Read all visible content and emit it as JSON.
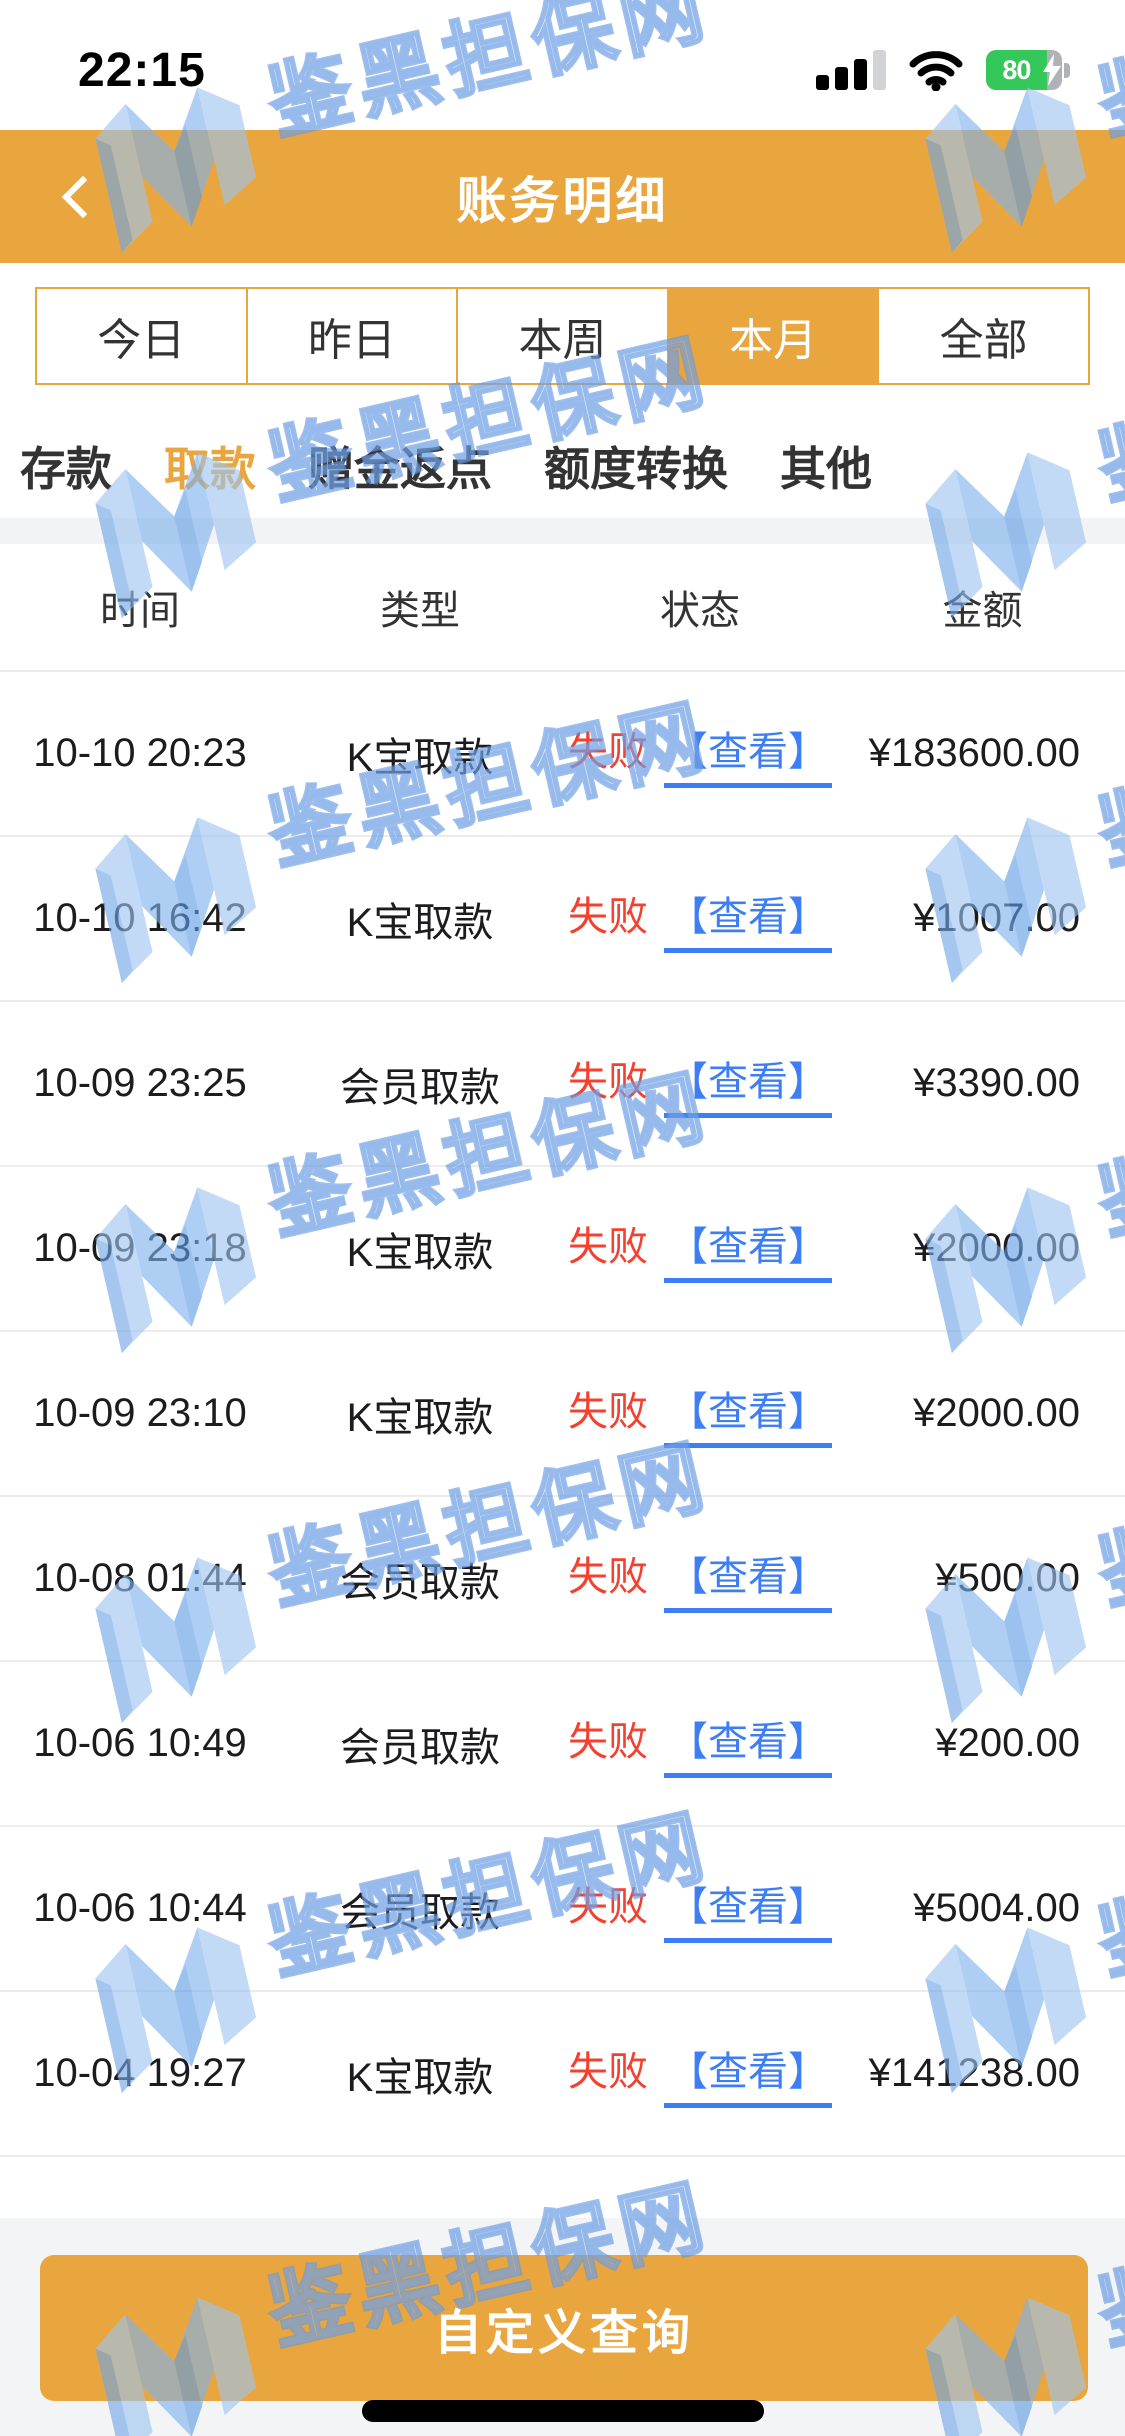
{
  "status_bar": {
    "time": "22:15",
    "battery_percent": "80"
  },
  "header": {
    "title": "账务明细"
  },
  "date_tabs": {
    "selected_index": 3,
    "items": [
      {
        "label": "今日"
      },
      {
        "label": "昨日"
      },
      {
        "label": "本周"
      },
      {
        "label": "本月"
      },
      {
        "label": "全部"
      }
    ]
  },
  "category_tabs": {
    "selected_index": 1,
    "items": [
      {
        "label": "存款"
      },
      {
        "label": "取款"
      },
      {
        "label": "赠金返点"
      },
      {
        "label": "额度转换"
      },
      {
        "label": "其他"
      }
    ]
  },
  "table": {
    "columns": [
      "时间",
      "类型",
      "状态",
      "金额"
    ],
    "rows": [
      {
        "time": "10-10 20:23",
        "type": "K宝取款",
        "status": "失败",
        "action": "【查看】",
        "amount": "¥183600.00"
      },
      {
        "time": "10-10 16:42",
        "type": "K宝取款",
        "status": "失败",
        "action": "【查看】",
        "amount": "¥1007.00"
      },
      {
        "time": "10-09 23:25",
        "type": "会员取款",
        "status": "失败",
        "action": "【查看】",
        "amount": "¥3390.00"
      },
      {
        "time": "10-09 23:18",
        "type": "K宝取款",
        "status": "失败",
        "action": "【查看】",
        "amount": "¥2000.00"
      },
      {
        "time": "10-09 23:10",
        "type": "K宝取款",
        "status": "失败",
        "action": "【查看】",
        "amount": "¥2000.00"
      },
      {
        "time": "10-08 01:44",
        "type": "会员取款",
        "status": "失败",
        "action": "【查看】",
        "amount": "¥500.00"
      },
      {
        "time": "10-06 10:49",
        "type": "会员取款",
        "status": "失败",
        "action": "【查看】",
        "amount": "¥200.00"
      },
      {
        "time": "10-06 10:44",
        "type": "会员取款",
        "status": "失败",
        "action": "【查看】",
        "amount": "¥5004.00"
      },
      {
        "time": "10-04 19:27",
        "type": "K宝取款",
        "status": "失败",
        "action": "【查看】",
        "amount": "¥141238.00"
      }
    ]
  },
  "footer": {
    "query_button": "自定义查询"
  },
  "watermark": {
    "text": "鉴黑担保网"
  },
  "colors": {
    "accent_orange": "#E9A63E",
    "status_fail_red": "#F4402F",
    "link_blue": "#3D7EF5",
    "battery_green": "#34C759",
    "watermark_blue": "#6296E2"
  }
}
